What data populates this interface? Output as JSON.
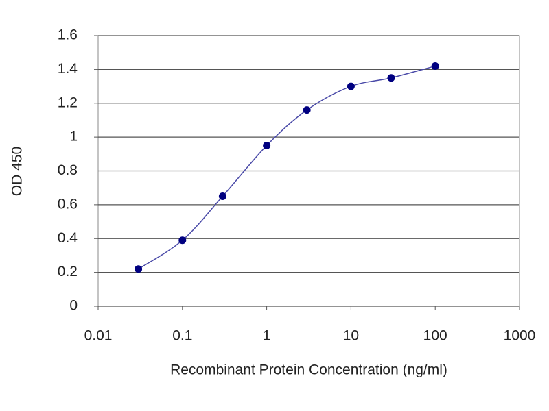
{
  "chart_data": {
    "type": "line",
    "x_label": "Recombinant Protein Concentration (ng/ml)",
    "y_label": "OD 450",
    "x": [
      0.03,
      0.1,
      0.3,
      1,
      3,
      10,
      30,
      100
    ],
    "series": [
      {
        "color": "#000080",
        "values": [
          0.22,
          0.39,
          0.65,
          0.95,
          1.16,
          1.3,
          1.35,
          1.42
        ]
      }
    ],
    "xlim": [
      0.01,
      1000
    ],
    "xticks": [
      0.01,
      0.1,
      1,
      10,
      100,
      1000
    ],
    "xscale": "log",
    "ylim": [
      0,
      1.6
    ],
    "yticks": [
      0,
      0.2,
      0.4,
      0.6,
      0.8,
      1,
      1.2,
      1.4,
      1.6
    ],
    "grid": true
  }
}
